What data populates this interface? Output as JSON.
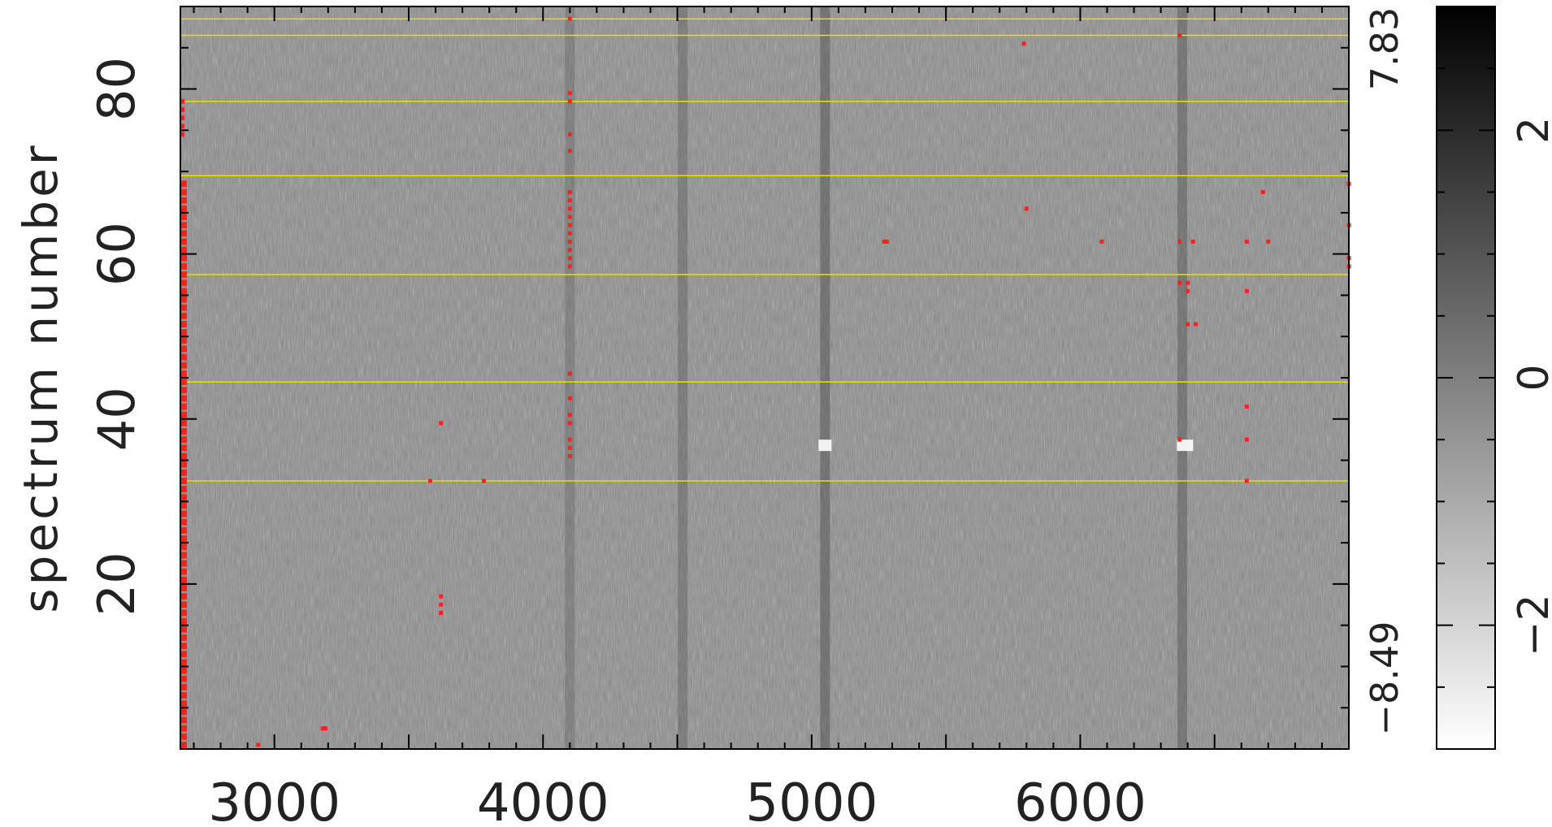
{
  "chart_data": {
    "type": "heatmap",
    "title": "",
    "xlabel": "",
    "ylabel": "spectrum number",
    "xlim": [
      2650,
      7000
    ],
    "ylim": [
      0,
      90
    ],
    "x_ticks": [
      3000,
      4000,
      5000,
      6000
    ],
    "y_ticks": [
      20,
      40,
      60,
      80
    ],
    "y_range_labels": {
      "max": "7.83",
      "min": "−8.49"
    },
    "colorbar": {
      "range": [
        -3,
        3
      ],
      "ticks": [
        -2,
        0,
        2
      ],
      "tick_labels": [
        "−2",
        "0",
        "2"
      ],
      "colormap": "grayscale, white low to black high"
    },
    "separator_lines_y": [
      32.5,
      44.5,
      57.5,
      69.5,
      78.5,
      86.5,
      88.5
    ],
    "separator_color": "#e8e000",
    "marker_color": "#ff2020",
    "flagged_points": [
      [
        4100,
        88.5
      ],
      [
        4100,
        79.5
      ],
      [
        4100,
        78.5
      ],
      [
        4100,
        74.5
      ],
      [
        4100,
        72.5
      ],
      [
        4100,
        67.5
      ],
      [
        4100,
        66.5
      ],
      [
        4100,
        65.5
      ],
      [
        4100,
        64.5
      ],
      [
        4100,
        63.5
      ],
      [
        4100,
        62.5
      ],
      [
        4100,
        61.5
      ],
      [
        4100,
        60.5
      ],
      [
        4100,
        59.5
      ],
      [
        4100,
        58.5
      ],
      [
        4100,
        45.5
      ],
      [
        4100,
        42.5
      ],
      [
        4100,
        40.5
      ],
      [
        4100,
        39.5
      ],
      [
        4100,
        37.5
      ],
      [
        4100,
        36.5
      ],
      [
        4100,
        35.5
      ],
      [
        5790,
        85.5
      ],
      [
        6370,
        86.5
      ],
      [
        5800,
        65.5
      ],
      [
        5270,
        61.5
      ],
      [
        5280,
        61.5
      ],
      [
        6080,
        61.5
      ],
      [
        6370,
        61.5
      ],
      [
        6420,
        61.5
      ],
      [
        6620,
        61.5
      ],
      [
        6700,
        61.5
      ],
      [
        6680,
        67.5
      ],
      [
        6370,
        56.5
      ],
      [
        6400,
        56.5
      ],
      [
        6400,
        55.5
      ],
      [
        6620,
        55.5
      ],
      [
        6400,
        51.5
      ],
      [
        6430,
        51.5
      ],
      [
        6620,
        41.5
      ],
      [
        6370,
        37.5
      ],
      [
        6620,
        37.5
      ],
      [
        6620,
        32.5
      ],
      [
        3620,
        39.5
      ],
      [
        3580,
        32.5
      ],
      [
        3780,
        32.5
      ],
      [
        3620,
        18.5
      ],
      [
        3620,
        17.5
      ],
      [
        3620,
        16.5
      ],
      [
        3180,
        2.5
      ],
      [
        3190,
        2.5
      ],
      [
        2940,
        0.5
      ],
      [
        7000,
        68.5
      ],
      [
        7000,
        63.5
      ],
      [
        7000,
        59.5
      ],
      [
        7000,
        58.5
      ]
    ]
  }
}
